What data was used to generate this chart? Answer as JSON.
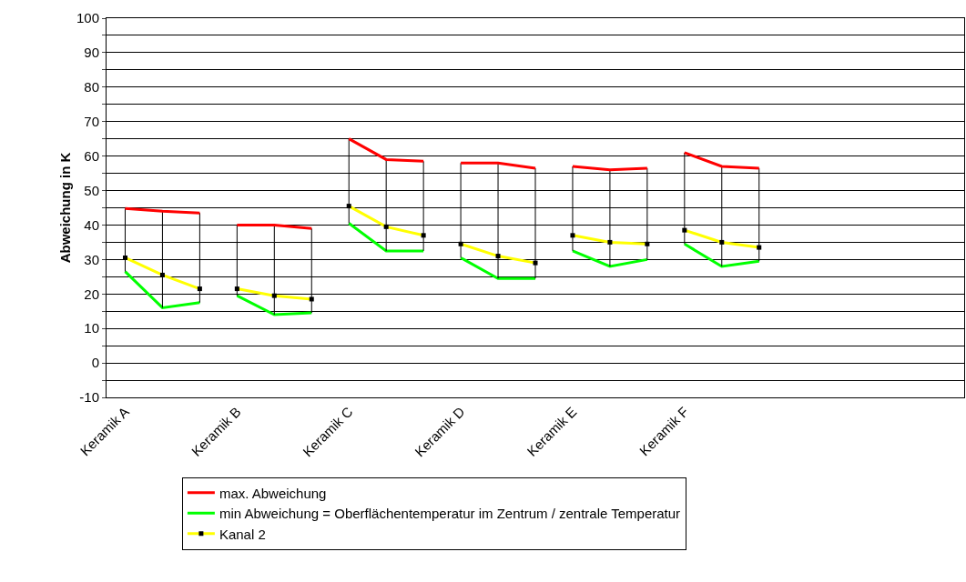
{
  "chart_data": {
    "type": "line",
    "ylabel": "Abweichung in K",
    "categories": [
      "Keramik A",
      null,
      null,
      "Keramik B",
      null,
      null,
      "Keramik C",
      null,
      null,
      "Keramik D",
      null,
      null,
      "Keramik E",
      null,
      null,
      "Keramik F",
      null,
      null,
      null,
      null,
      null,
      null,
      null
    ],
    "series": [
      {
        "name": "max. Abweichung",
        "color": "#ff0000",
        "marker": "none",
        "values": [
          44.8,
          44,
          43.5,
          40,
          40,
          39,
          65,
          59,
          58.5,
          58,
          58,
          56.5,
          57,
          56,
          56.5,
          61,
          57,
          56.5,
          null,
          null,
          null,
          null,
          null
        ],
        "errors": [
          [
            26.5,
            44.8
          ],
          [
            16,
            44
          ],
          [
            17.5,
            43.5
          ],
          [
            19.5,
            40
          ],
          [
            14,
            40
          ],
          [
            14.5,
            39
          ],
          [
            40.5,
            65
          ],
          [
            32.5,
            59
          ],
          [
            32.5,
            58.5
          ],
          [
            30.5,
            58
          ],
          [
            24.5,
            58
          ],
          [
            24.5,
            56.5
          ],
          [
            32.5,
            57
          ],
          [
            28,
            56
          ],
          [
            30,
            56.5
          ],
          [
            34.5,
            61
          ],
          [
            28,
            57
          ],
          [
            29.5,
            56.5
          ],
          null,
          null,
          null,
          null,
          null
        ]
      },
      {
        "name": "min Abweichung = Oberflächentemperatur im Zentrum / zentrale Temperatur",
        "color": "#00ff00",
        "marker": "none",
        "values": [
          26.5,
          16,
          17.5,
          19.5,
          14,
          14.5,
          40.5,
          32.5,
          32.5,
          30.5,
          24.5,
          24.5,
          32.5,
          28,
          30,
          34.5,
          28,
          29.5,
          null,
          null,
          null,
          null,
          null
        ]
      },
      {
        "name": "Kanal 2",
        "color": "#ffff00",
        "marker": "square",
        "values": [
          30.5,
          25.5,
          21.5,
          21.5,
          19.5,
          18.5,
          45.5,
          39.5,
          37,
          34.5,
          31,
          29,
          37,
          35,
          34.5,
          38.5,
          35,
          33.5,
          null,
          null,
          null,
          null,
          null
        ]
      }
    ],
    "ylim": [
      -10,
      100
    ],
    "yticks": [
      -10,
      {
        "value": -5,
        "label": null
      },
      0,
      {
        "value": 5,
        "label": null
      },
      10,
      {
        "value": 15,
        "label": null
      },
      20,
      {
        "value": 25,
        "label": null
      },
      30,
      {
        "value": 35,
        "label": null
      },
      40,
      {
        "value": 45,
        "label": null
      },
      50,
      {
        "value": 55,
        "label": null
      },
      60,
      {
        "value": 65,
        "label": null
      },
      70,
      {
        "value": 75,
        "label": null
      },
      80,
      {
        "value": 85,
        "label": null
      },
      90,
      {
        "value": 95,
        "label": null
      },
      100
    ],
    "grid": "y",
    "legend": "bottom",
    "line_style": "solid"
  }
}
